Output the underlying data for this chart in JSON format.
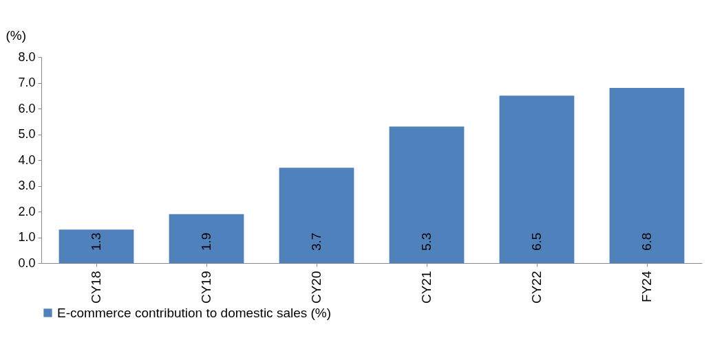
{
  "chart_data": {
    "type": "bar",
    "ylabel": "(%)",
    "categories": [
      "CY18",
      "CY19",
      "CY20",
      "CY21",
      "CY22",
      "FY24"
    ],
    "series": [
      {
        "name": "E-commerce contribution to domestic sales (%)",
        "color": "#4f81bd",
        "values": [
          1.3,
          1.9,
          3.7,
          5.3,
          6.5,
          6.8
        ]
      }
    ],
    "ylim": [
      0,
      8
    ],
    "yticks": [
      {
        "value": 0,
        "label": "0.0"
      },
      {
        "value": 1,
        "label": "1.0"
      },
      {
        "value": 2,
        "label": "2.0"
      },
      {
        "value": 3,
        "label": "3.0"
      },
      {
        "value": 4,
        "label": "4.0"
      },
      {
        "value": 5,
        "label": "5.0"
      },
      {
        "value": 6,
        "label": "6.0"
      },
      {
        "value": 7,
        "label": "7.0"
      },
      {
        "value": 8,
        "label": "8.0"
      }
    ],
    "data_labels": true,
    "grid": false,
    "legend": "bottom"
  }
}
